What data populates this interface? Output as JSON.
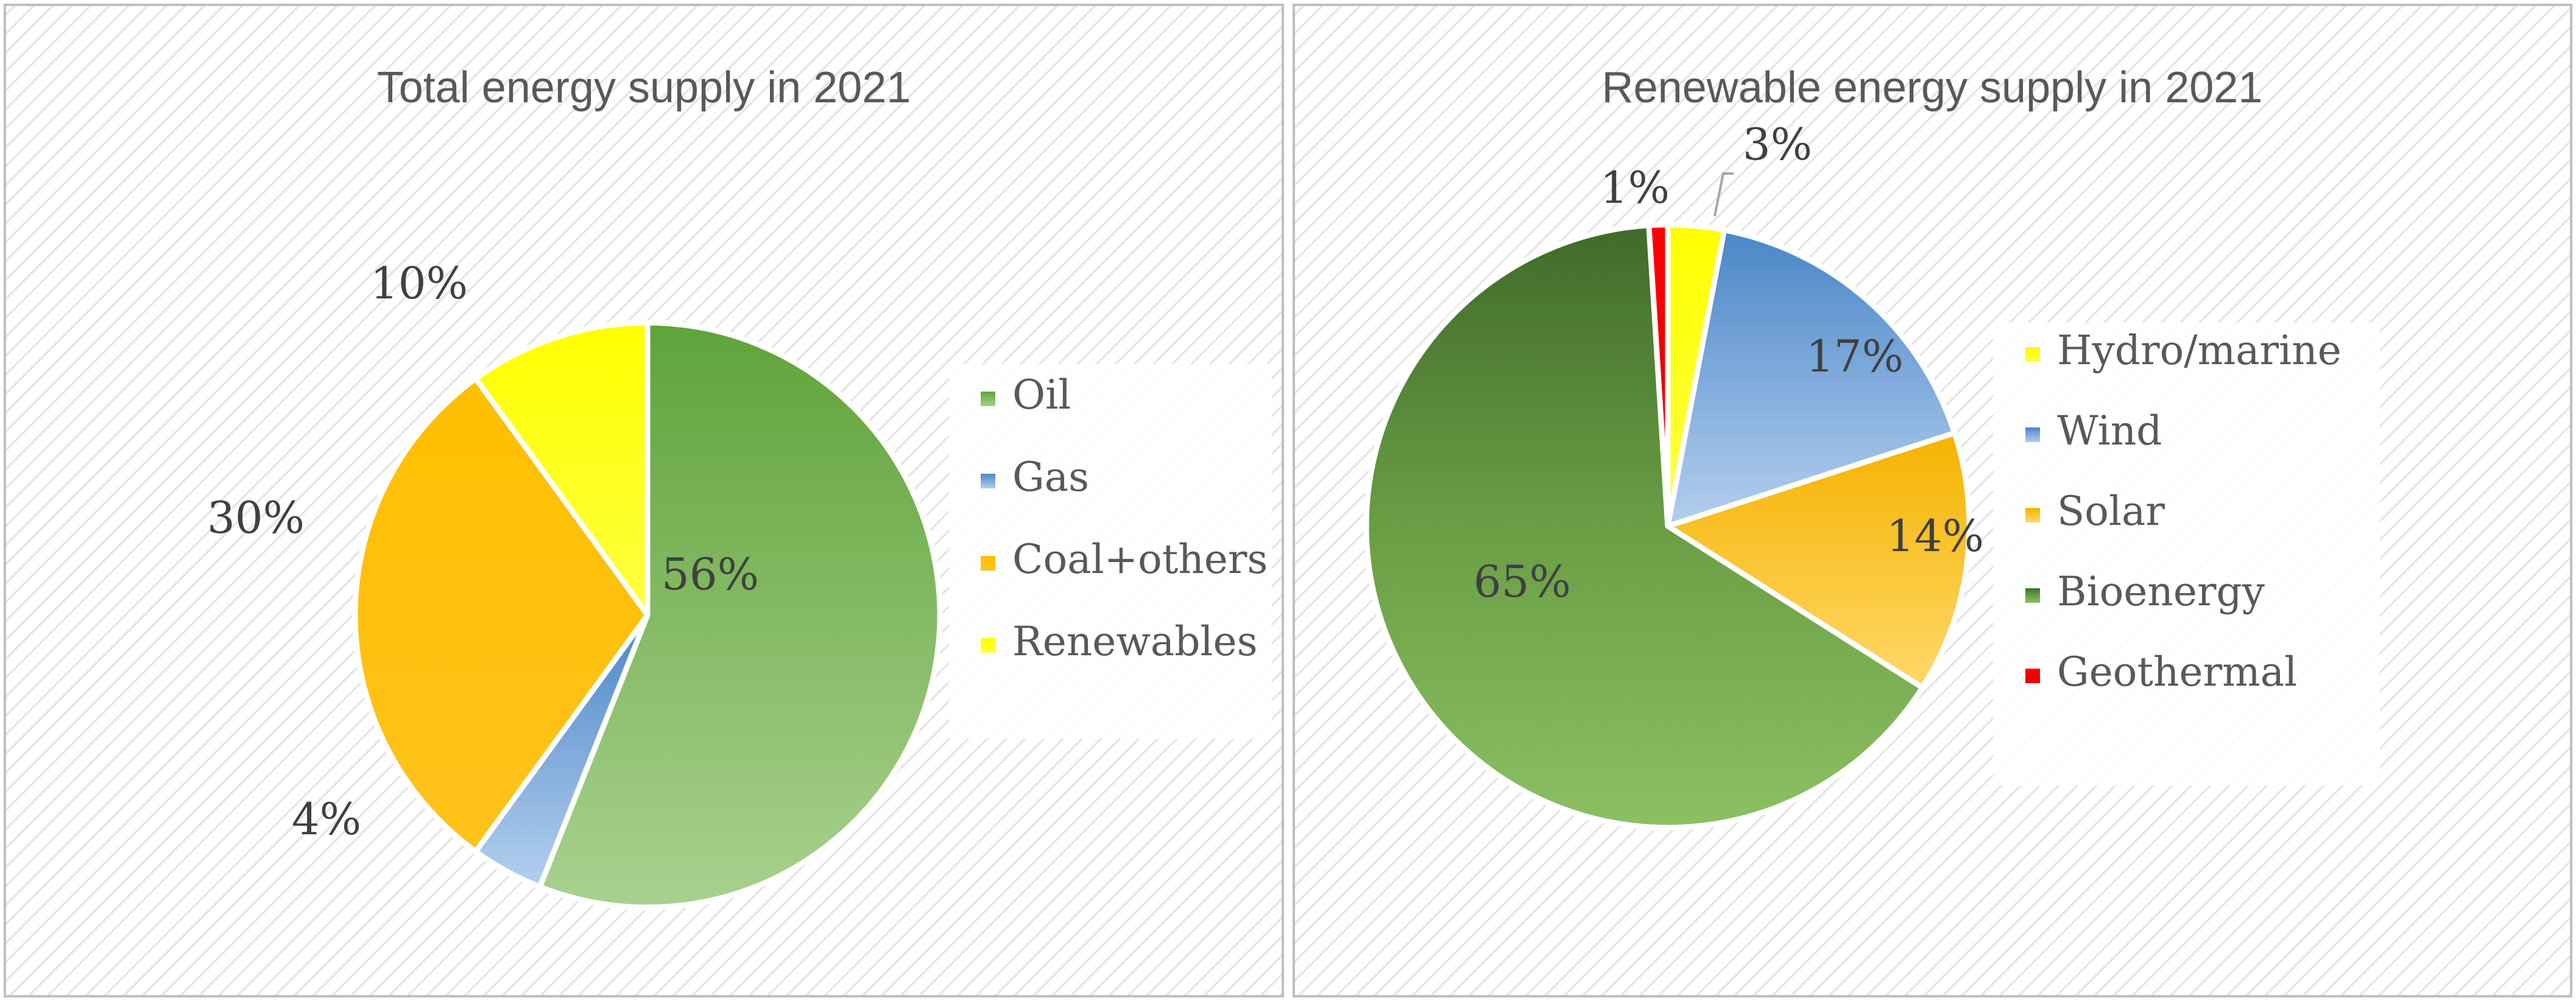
{
  "chart_data": [
    {
      "type": "pie",
      "title": "Total energy supply in 2021",
      "categories": [
        "Oil",
        "Gas",
        "Coal+others",
        "Renewables"
      ],
      "values": [
        56,
        4,
        30,
        10
      ],
      "labels": [
        "56%",
        "4%",
        "30%",
        "10%"
      ],
      "colors": [
        "#70AD47",
        "#5B9BD5",
        "#FFC000",
        "#FFFF00"
      ],
      "legend_position": "right"
    },
    {
      "type": "pie",
      "title": "Renewable energy supply in 2021",
      "categories": [
        "Hydro/marine",
        "Wind",
        "Solar",
        "Bioenergy",
        "Geothermal"
      ],
      "values": [
        3,
        17,
        14,
        65,
        1
      ],
      "labels": [
        "3%",
        "17%",
        "14%",
        "65%",
        "1%"
      ],
      "colors": [
        "#FFFF00",
        "#5B9BD5",
        "#FFC000",
        "#70AD47",
        "#FF0000"
      ],
      "legend_position": "right"
    }
  ]
}
